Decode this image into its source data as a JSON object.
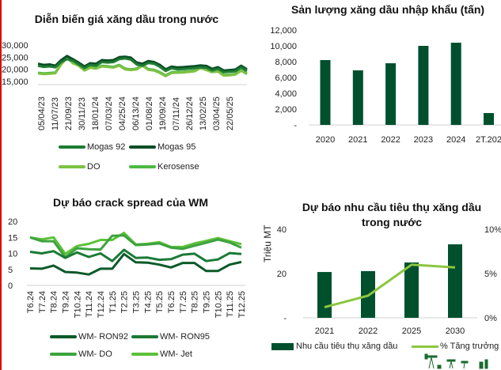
{
  "chart_data": [
    {
      "type": "line",
      "title": "Diễn biến giá xăng dầu trong nước",
      "yticks": [
        "30,000",
        "25,000",
        "20,000",
        "15,000"
      ],
      "ylim": [
        15000,
        30000
      ],
      "xticks": [
        "05/04/23",
        "11/07/23",
        "21/09/23",
        "30/11/23",
        "18/01/24",
        "07/03/24",
        "04/25/24",
        "06/13/24",
        "01/08/24",
        "19/09/24",
        "07/11/24",
        "26/12/24",
        "13/02/25",
        "03/04/25",
        "22/05/25"
      ],
      "series": [
        {
          "name": "Mogas 92",
          "color": "#1e7b32",
          "values": [
            21500,
            21000,
            21200,
            20800,
            23000,
            24200,
            23500,
            22000,
            20500,
            21800,
            21500,
            23000,
            22800,
            23000,
            24200,
            24500,
            24000,
            22000,
            21500,
            22600,
            22300,
            21000,
            19300,
            20400,
            20000,
            20100,
            20300,
            20500,
            20800,
            20600,
            19500,
            20200,
            18800,
            19000,
            19200,
            20800,
            19300
          ]
        },
        {
          "name": "Mogas 95",
          "color": "#0b4d26",
          "values": [
            22300,
            21800,
            22000,
            21500,
            23800,
            25500,
            24200,
            22800,
            21200,
            22500,
            22300,
            23800,
            23600,
            23800,
            25000,
            25200,
            24800,
            22800,
            22300,
            23400,
            23000,
            21800,
            20000,
            21100,
            20800,
            20900,
            21100,
            21300,
            21600,
            21400,
            20200,
            20900,
            19500,
            19700,
            19900,
            21500,
            20000
          ]
        },
        {
          "name": "DO",
          "color": "#7dc242",
          "values": [
            18300,
            18000,
            18200,
            18400,
            22000,
            24800,
            22500,
            21500,
            19500,
            20600,
            20300,
            21200,
            21000,
            20700,
            21500,
            20000,
            19700,
            20000,
            21500,
            19800,
            19500,
            18500,
            17200,
            18500,
            18600,
            18700,
            18900,
            19200,
            20500,
            19700,
            18800,
            19100,
            17400,
            17500,
            17800,
            19400,
            18000
          ]
        },
        {
          "name": "Kerosense",
          "color": "#4cb944",
          "values": [
            18600,
            18300,
            18500,
            18700,
            22300,
            25000,
            22800,
            21800,
            19800,
            20900,
            20600,
            21500,
            21300,
            21000,
            21800,
            20300,
            20000,
            20300,
            21800,
            20100,
            19800,
            18800,
            17500,
            18800,
            18900,
            19000,
            19200,
            19500,
            20800,
            20000,
            19100,
            19400,
            17700,
            17800,
            18100,
            19700,
            18300
          ]
        }
      ]
    },
    {
      "type": "bar",
      "title": "Sản lượng xăng dầu nhập khẩu (tấn)",
      "categories": [
        "2020",
        "2021",
        "2022",
        "2023",
        "2024",
        "2T.202"
      ],
      "values": [
        8200,
        6900,
        7800,
        10000,
        10400,
        1500
      ],
      "yticks": [
        "12,000",
        "10,000",
        "8,000",
        "6,000",
        "4,000",
        "2,000",
        "-"
      ],
      "ylim": [
        0,
        12000
      ],
      "color": "#00502e"
    },
    {
      "type": "line",
      "title": "Dự báo crack spread của WM",
      "categories": [
        "T6.24",
        "T7.24",
        "T8.24",
        "T9.24",
        "T10.24",
        "T11.24",
        "T12.24",
        "T1.25",
        "T2.25",
        "T3.25",
        "T4.25",
        "T5.25",
        "T6.25",
        "T7.25",
        "T8.25",
        "T9.25",
        "T10.25",
        "T11.25",
        "T12.25"
      ],
      "yticks": [
        "20",
        "15",
        "10",
        "5",
        "0"
      ],
      "ylim": [
        0,
        20
      ],
      "series": [
        {
          "name": "WM- RON92",
          "color": "#0b5a2a",
          "values": [
            5.3,
            5.2,
            6.2,
            4.2,
            4.0,
            3.4,
            5.2,
            5.2,
            9.8,
            7.2,
            7.1,
            6.5,
            5.6,
            7.0,
            7.0,
            4.5,
            4.5,
            6.5,
            7.3
          ]
        },
        {
          "name": "WM- RON95",
          "color": "#1a7a35",
          "values": [
            10.5,
            10.0,
            10.7,
            8.6,
            10.3,
            8.9,
            10.0,
            7.6,
            11.1,
            8.6,
            8.7,
            8.0,
            8.2,
            9.6,
            9.9,
            7.6,
            8.1,
            10.1,
            9.8
          ]
        },
        {
          "name": "WM- DO",
          "color": "#3da33f",
          "values": [
            15.0,
            13.8,
            13.8,
            8.8,
            11.6,
            11.3,
            11.2,
            15.5,
            15.6,
            12.6,
            12.8,
            13.1,
            11.8,
            11.4,
            12.4,
            13.3,
            14.3,
            13.4,
            11.8
          ]
        },
        {
          "name": "WM- Jet",
          "color": "#5cc13a",
          "values": [
            15.0,
            14.4,
            15.0,
            9.8,
            12.3,
            13.0,
            14.2,
            14.2,
            16.4,
            12.8,
            13.0,
            13.5,
            12.0,
            12.0,
            13.1,
            13.9,
            14.8,
            13.8,
            12.9
          ]
        }
      ]
    },
    {
      "type": "bar",
      "title": "Dự báo nhu cầu tiêu thụ xăng dầu trong nước",
      "title_lines": [
        "Dự báo nhu cầu tiêu thụ xăng dầu",
        "trong nước"
      ],
      "categories": [
        "2021",
        "2022",
        "2025",
        "2030"
      ],
      "ylabel": "Triệu MT",
      "yticks": [
        "40",
        "20",
        "-"
      ],
      "ylim": [
        0,
        40
      ],
      "y2ticks": [
        "10%",
        "5%",
        "0%"
      ],
      "y2lim": [
        0,
        10
      ],
      "series": [
        {
          "name": "Nhu cầu tiêu thụ xăng dầu",
          "kind": "bar",
          "color": "#00502e",
          "values": [
            20.7,
            21.1,
            25.0,
            33.2
          ]
        },
        {
          "name": "% Tăng trưởng",
          "kind": "line",
          "color": "#8cc63f",
          "values": [
            1.2,
            2.5,
            6.0,
            5.7
          ]
        }
      ]
    }
  ]
}
